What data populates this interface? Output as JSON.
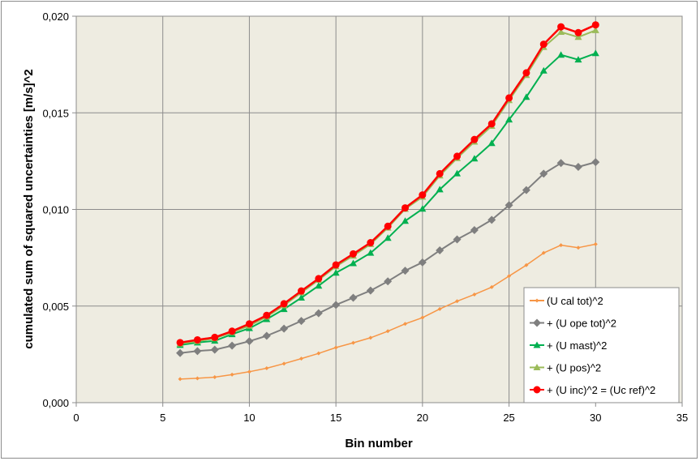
{
  "chart_data": {
    "type": "line",
    "xlabel": "Bin number",
    "ylabel": "cumulated sum of squared uncertainties [m/s]^2",
    "xlim": [
      0,
      35
    ],
    "ylim": [
      0,
      0.02
    ],
    "x_ticks": [
      "0",
      "5",
      "10",
      "15",
      "20",
      "25",
      "30",
      "35"
    ],
    "y_ticks": [
      "0,000",
      "0,005",
      "0,010",
      "0,015",
      "0,020"
    ],
    "grid": true,
    "legend_position": "bottom-right",
    "x": [
      6,
      7,
      8,
      9,
      10,
      11,
      12,
      13,
      14,
      15,
      16,
      17,
      18,
      19,
      20,
      21,
      22,
      23,
      24,
      25,
      26,
      27,
      28,
      29,
      30
    ],
    "series": [
      {
        "name": "(U cal tot)^2",
        "color": "#f79646",
        "marker": "diamond-small",
        "values": [
          0.00122,
          0.00126,
          0.00132,
          0.00145,
          0.0016,
          0.00178,
          0.00202,
          0.00228,
          0.00255,
          0.00285,
          0.0031,
          0.00336,
          0.0037,
          0.00408,
          0.0044,
          0.00485,
          0.00525,
          0.0056,
          0.00598,
          0.00655,
          0.00712,
          0.00775,
          0.00815,
          0.00802,
          0.0082
        ]
      },
      {
        "name": "+ (U ope tot)^2",
        "color": "#7f7f7f",
        "marker": "diamond",
        "values": [
          0.00257,
          0.00267,
          0.00274,
          0.00295,
          0.00318,
          0.00346,
          0.00383,
          0.00423,
          0.00463,
          0.00506,
          0.00543,
          0.0058,
          0.00628,
          0.00683,
          0.00726,
          0.00788,
          0.00845,
          0.00893,
          0.00946,
          0.01022,
          0.011,
          0.01185,
          0.0124,
          0.0122,
          0.01245
        ]
      },
      {
        "name": "+ (U mast)^2",
        "color": "#00b050",
        "marker": "triangle",
        "values": [
          0.00298,
          0.00311,
          0.0032,
          0.00354,
          0.00385,
          0.00432,
          0.00484,
          0.00543,
          0.00605,
          0.00672,
          0.00721,
          0.00775,
          0.00852,
          0.0094,
          0.01003,
          0.01103,
          0.01186,
          0.01263,
          0.01343,
          0.01465,
          0.01582,
          0.01718,
          0.018,
          0.01775,
          0.01808
        ]
      },
      {
        "name": "+ (U pos)^2",
        "color": "#9bbb59",
        "marker": "triangle",
        "values": [
          0.00305,
          0.00318,
          0.00333,
          0.00364,
          0.00398,
          0.00445,
          0.00503,
          0.0057,
          0.00635,
          0.00705,
          0.0076,
          0.0082,
          0.00905,
          0.01002,
          0.01065,
          0.01175,
          0.01265,
          0.0135,
          0.01432,
          0.01565,
          0.01695,
          0.0184,
          0.01918,
          0.01892,
          0.01927
        ]
      },
      {
        "name": "+ (U inc)^2 = (Uc ref)^2",
        "color": "#ff0000",
        "marker": "circle",
        "values": [
          0.00311,
          0.00325,
          0.00338,
          0.0037,
          0.00408,
          0.00452,
          0.00512,
          0.00578,
          0.00642,
          0.00713,
          0.0077,
          0.00828,
          0.00913,
          0.01008,
          0.01075,
          0.01185,
          0.01275,
          0.01362,
          0.01443,
          0.01577,
          0.01707,
          0.01855,
          0.01945,
          0.01915,
          0.01955
        ]
      }
    ]
  }
}
